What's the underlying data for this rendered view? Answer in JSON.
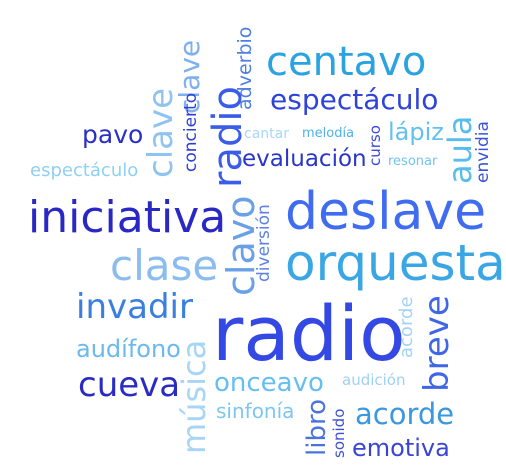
{
  "cloud": {
    "words": [
      {
        "text": "adverbio",
        "color": "#4f7fe0"
      },
      {
        "text": "centavo",
        "color": "#2aa3e0"
      },
      {
        "text": "radio",
        "color": "#3b5ce8"
      },
      {
        "text": "clave",
        "color": "#7fb0ec"
      },
      {
        "text": "espectáculo",
        "color": "#2e44d8"
      },
      {
        "text": "concierto",
        "color": "#2c3fd6"
      },
      {
        "text": "pavo",
        "color": "#2a2fc6"
      },
      {
        "text": "clave",
        "color": "#8fc4f0"
      },
      {
        "text": "cantar",
        "color": "#a9d7f5"
      },
      {
        "text": "melodía",
        "color": "#4fb2e8"
      },
      {
        "text": "curso",
        "color": "#3a4ad9"
      },
      {
        "text": "lápiz",
        "color": "#62c1f0"
      },
      {
        "text": "aula",
        "color": "#58bdea"
      },
      {
        "text": "envidia",
        "color": "#3b54d6"
      },
      {
        "text": "espectáculo",
        "color": "#8ed0f4"
      },
      {
        "text": "evaluación",
        "color": "#2a36c8"
      },
      {
        "text": "resonar",
        "color": "#6fc4f0"
      },
      {
        "text": "iniciativa",
        "color": "#2a28c4"
      },
      {
        "text": "diversión",
        "color": "#5d82e2"
      },
      {
        "text": "deslave",
        "color": "#3f6cf0"
      },
      {
        "text": "clase",
        "color": "#8bbcef"
      },
      {
        "text": "clavo",
        "color": "#6aa0e8"
      },
      {
        "text": "orquesta",
        "color": "#3aa6e4"
      },
      {
        "text": "invadir",
        "color": "#3a7fe0"
      },
      {
        "text": "radio",
        "color": "#3448e4"
      },
      {
        "text": "acorde",
        "color": "#a4d3f6"
      },
      {
        "text": "breve",
        "color": "#3f66e6"
      },
      {
        "text": "audífono",
        "color": "#6bb9ee"
      },
      {
        "text": "música",
        "color": "#a6d5f6"
      },
      {
        "text": "cueva",
        "color": "#2a2bc2"
      },
      {
        "text": "onceavo",
        "color": "#66bff0"
      },
      {
        "text": "audición",
        "color": "#9fd0f5"
      },
      {
        "text": "libro",
        "color": "#4a74dc"
      },
      {
        "text": "sinfonía",
        "color": "#7ec6f2"
      },
      {
        "text": "sonido",
        "color": "#3b4fd8"
      },
      {
        "text": "acorde",
        "color": "#3a97e0"
      },
      {
        "text": "emotiva",
        "color": "#3a45d4"
      }
    ]
  }
}
